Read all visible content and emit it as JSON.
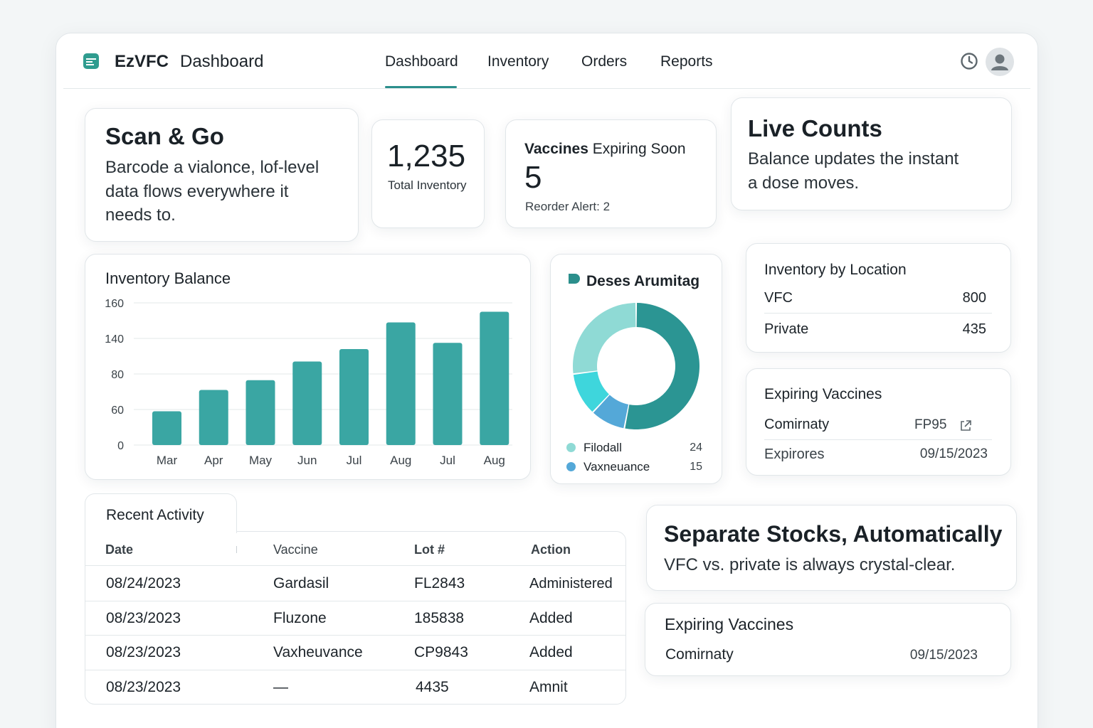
{
  "app": {
    "brand": "EzVFC",
    "page": "Dashboard"
  },
  "nav": {
    "items": [
      "Dashboard",
      "Inventory",
      "Orders",
      "Reports"
    ],
    "active": "Dashboard"
  },
  "icons": {
    "history": "history-icon",
    "avatar": "user-avatar-icon"
  },
  "scan_card": {
    "title": "Scan & Go",
    "body_line1": "Barcode a vialonce, lof-level",
    "body_line2": "data flows everywhere it",
    "body_line3": "needs to."
  },
  "total_card": {
    "value": "1,235",
    "label": "Total Inventory"
  },
  "expiring_soon_card": {
    "title_bold": "Vaccines",
    "title_rest": "Expiring Soon",
    "value": "5",
    "alert": "Reorder Alert: 2"
  },
  "live_card": {
    "title": "Live Counts",
    "body_line1": "Balance updates the instant",
    "body_line2": "a dose moves."
  },
  "balance_chart": {
    "title": "Inventory Balance",
    "y_ticks": [
      "160",
      "140",
      "80",
      "60",
      "0"
    ]
  },
  "chart_data": [
    {
      "type": "bar",
      "title": "Inventory Balance",
      "categories": [
        "Mar",
        "Apr",
        "May",
        "Jun",
        "Jul",
        "Aug",
        "Jul",
        "Aug"
      ],
      "values": [
        38,
        62,
        73,
        94,
        108,
        138,
        115,
        150
      ],
      "y_tick_labels": [
        "0",
        "60",
        "80",
        "140",
        "160"
      ],
      "grid": true,
      "color": "#3aa6a3"
    },
    {
      "type": "pie",
      "title": "Deses Arumitag",
      "slices": [
        {
          "name": "Filodall",
          "value": 24,
          "color": "#8fdad5"
        },
        {
          "name": "Vaxneuance",
          "value": 15,
          "color": "#54a8d8"
        }
      ],
      "ring_colors": [
        "#2b9593",
        "#54a8d8",
        "#3ed6dc",
        "#8fdad5"
      ],
      "ring_fractions": [
        0.53,
        0.09,
        0.11,
        0.27
      ]
    }
  ],
  "donut_card": {
    "title": "Deses Arumitag",
    "legend": [
      {
        "label": "Filodall",
        "value": "24",
        "color": "#8fdad5"
      },
      {
        "label": "Vaxneuance",
        "value": "15",
        "color": "#54a8d8"
      }
    ]
  },
  "location_card": {
    "title": "Inventory by Location",
    "rows": [
      {
        "label": "VFC",
        "value": "800"
      },
      {
        "label": "Private",
        "value": "435"
      }
    ]
  },
  "expiring_card_1": {
    "title": "Expiring Vaccines",
    "row1_label": "Comirnaty",
    "row1_value": "FP95",
    "row2_label": "Expirores",
    "row2_value": "09/15/2023"
  },
  "activity": {
    "tab": "Recent Activity",
    "headers": [
      "Date",
      "Vaccine",
      "Lot #",
      "Action"
    ],
    "rows": [
      [
        "08/24/2023",
        "Gardasil",
        "FL2843",
        "Administered"
      ],
      [
        "08/23/2023",
        "Fluzone",
        "185838",
        "Added"
      ],
      [
        "08/23/2023",
        "Vaxheuvance",
        "CP9843",
        "Added"
      ],
      [
        "08/23/2023",
        "—",
        "4435",
        "Amnit"
      ]
    ]
  },
  "separate_card": {
    "title": "Separate Stocks, Automatically",
    "body": "VFC vs. private is always crystal-clear."
  },
  "expiring_card_2": {
    "title": "Expiring Vaccines",
    "row_label": "Comirnaty",
    "row_value": "09/15/2023"
  },
  "colors": {
    "accent": "#2b8f8c",
    "bar": "#3aa6a3"
  }
}
